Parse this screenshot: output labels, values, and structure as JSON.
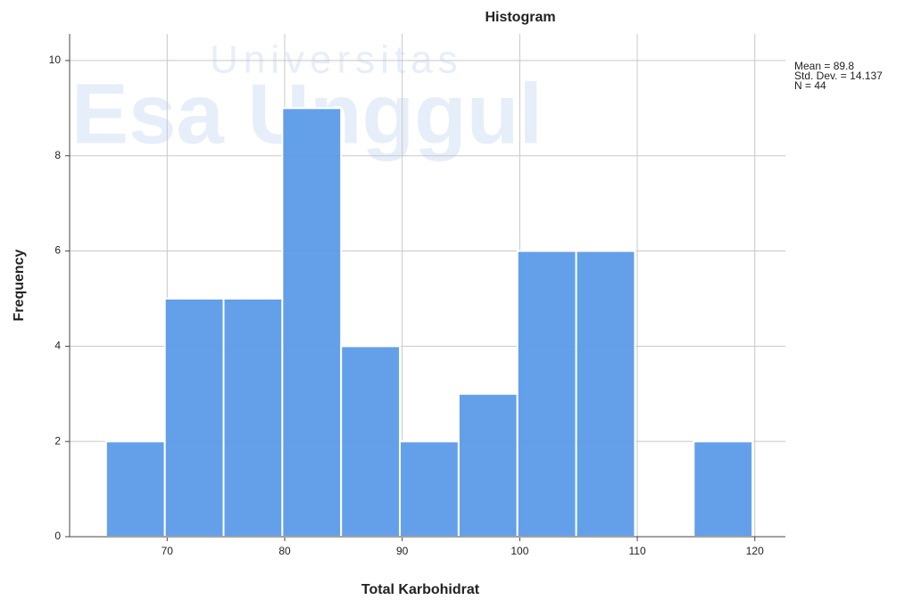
{
  "chart_data": {
    "type": "histogram",
    "title": "Histogram",
    "x_label": "Total Karbohidrat",
    "y_label": "Frequency",
    "annotations": [
      "Mean = 89.8",
      "Std. Dev. = 14.137",
      "N = 44"
    ],
    "watermark": [
      "Universitas",
      "Esa Unggul"
    ],
    "bins": [
      64.8,
      69.8,
      74.8,
      79.8,
      84.8,
      89.8,
      94.8,
      99.8,
      104.8,
      109.8,
      114.8,
      119.8
    ],
    "counts": [
      2,
      5,
      5,
      9,
      4,
      2,
      3,
      6,
      6,
      0,
      2
    ],
    "color": "#5b9be8",
    "xlim": [
      61.7,
      122.6
    ],
    "xticks": [
      70,
      80,
      90,
      100,
      110,
      120
    ],
    "ylim": [
      0,
      10.56
    ],
    "yticks": [
      0,
      2,
      4,
      6,
      8,
      10
    ],
    "grid": true
  }
}
